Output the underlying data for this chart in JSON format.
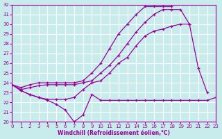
{
  "xlabel": "Windchill (Refroidissement éolien,°C)",
  "xlim": [
    0,
    23
  ],
  "ylim": [
    20,
    32
  ],
  "yticks": [
    20,
    21,
    22,
    23,
    24,
    25,
    26,
    27,
    28,
    29,
    30,
    31,
    32
  ],
  "xticks": [
    0,
    1,
    2,
    3,
    4,
    5,
    6,
    7,
    8,
    9,
    10,
    11,
    12,
    13,
    14,
    15,
    16,
    17,
    18,
    19,
    20,
    21,
    22,
    23
  ],
  "bg_color": "#c8ecec",
  "line_color": "#990099",
  "grid_color": "#ffffff",
  "series": [
    {
      "x": [
        0,
        1,
        2,
        3,
        4,
        5,
        6,
        7,
        8,
        9,
        10,
        11,
        12,
        13,
        14,
        15,
        16,
        17,
        18,
        19,
        20,
        21,
        22,
        23
      ],
      "y": [
        23.8,
        23.2,
        22.8,
        22.5,
        22.2,
        21.8,
        21.2,
        20.0,
        20.7,
        22.8,
        22.2,
        22.2,
        22.2,
        22.2,
        22.2,
        22.2,
        22.2,
        22.2,
        22.2,
        22.2,
        22.2,
        22.2,
        22.2,
        22.5
      ]
    },
    {
      "x": [
        0,
        1,
        2,
        3,
        4,
        5,
        6,
        7,
        8,
        9,
        10,
        11,
        12,
        13,
        14,
        15,
        16,
        17,
        18,
        19,
        20,
        21,
        22
      ],
      "y": [
        23.8,
        23.2,
        22.8,
        22.5,
        22.3,
        22.3,
        22.3,
        22.5,
        23.3,
        24.0,
        24.2,
        25.0,
        26.0,
        26.6,
        27.8,
        28.8,
        29.3,
        29.5,
        29.8,
        30.0,
        30.0,
        25.5,
        23.0
      ]
    },
    {
      "x": [
        0,
        1,
        2,
        3,
        4,
        5,
        6,
        7,
        8,
        9,
        10,
        11,
        12,
        13,
        14,
        15,
        16,
        17,
        18,
        19,
        20
      ],
      "y": [
        23.8,
        23.3,
        23.5,
        23.7,
        23.8,
        23.8,
        23.8,
        23.8,
        24.0,
        24.2,
        25.0,
        25.8,
        26.8,
        28.0,
        29.2,
        30.2,
        31.0,
        31.5,
        31.5,
        31.5,
        30.0
      ]
    },
    {
      "x": [
        0,
        1,
        2,
        3,
        4,
        5,
        6,
        7,
        8,
        9,
        10,
        11,
        12,
        13,
        14,
        15,
        16,
        17,
        18
      ],
      "y": [
        23.8,
        23.5,
        23.8,
        24.0,
        24.0,
        24.0,
        24.0,
        24.0,
        24.2,
        25.0,
        26.0,
        27.5,
        29.0,
        30.0,
        31.0,
        31.8,
        31.8,
        31.8,
        31.8
      ]
    }
  ]
}
